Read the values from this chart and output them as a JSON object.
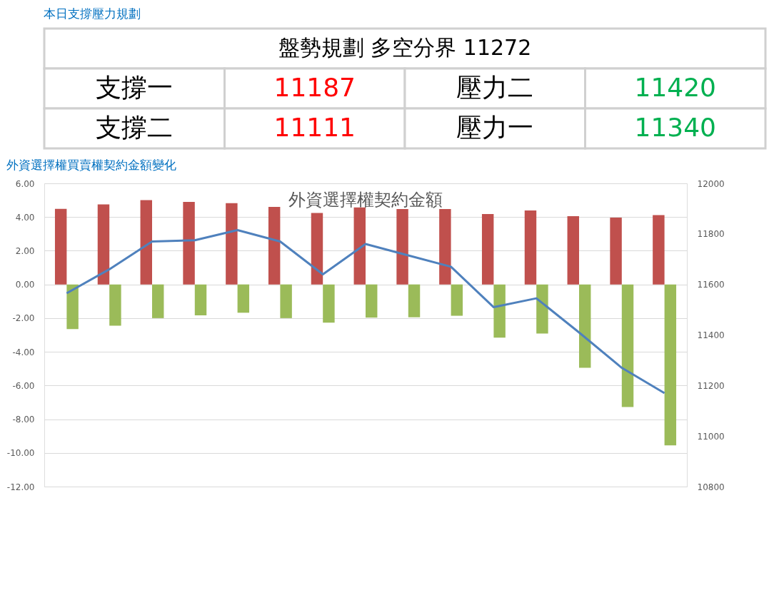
{
  "chart_data": [
    {
      "type": "other",
      "title": "本日支撐壓力規劃",
      "subtitle": "盤勢規劃 多空分界 11272",
      "annotations": [
        "支撐一",
        "11187",
        "壓力二",
        "11420",
        "支撐二",
        "11111",
        "壓力一",
        "11340"
      ],
      "colors": [
        "#000000",
        "#ff0000",
        "#000000",
        "#00b050",
        "#000000",
        "#ff0000",
        "#000000",
        "#00b050"
      ]
    },
    {
      "type": "bar",
      "title": "外資選擇權買賣權契約金額變化",
      "subtitle": "外資選擇權契約金額",
      "categories": [
        null,
        null,
        null,
        null,
        null,
        null,
        null,
        null,
        null,
        null,
        null,
        null,
        null,
        null,
        null
      ],
      "series": [
        {
          "color": "#c0504d",
          "values": [
            4.49,
            4.75,
            5.0,
            4.9,
            4.83,
            4.6,
            4.24,
            4.57,
            4.48,
            4.48,
            4.18,
            4.39,
            4.05,
            3.97,
            4.12
          ]
        },
        {
          "color": "#9bbb59",
          "values": [
            -2.65,
            -2.45,
            -2.0,
            -1.83,
            -1.68,
            -2.0,
            -2.27,
            -1.97,
            -1.95,
            -1.86,
            -3.16,
            -2.92,
            -4.95,
            -7.28,
            -9.55
          ]
        },
        {
          "type": "line",
          "axis": "y2",
          "color": "#4f81bd",
          "values": [
            11565,
            11660,
            11770,
            11775,
            11815,
            11770,
            11640,
            11760,
            11715,
            11670,
            11510,
            11545,
            11410,
            11270,
            11170
          ]
        }
      ],
      "ylim": [
        -12,
        6
      ],
      "yticks": [
        {
          "value": -12,
          "label": "-12.00"
        },
        {
          "value": -10,
          "label": "-10.00"
        },
        {
          "value": -8,
          "label": "-8.00"
        },
        {
          "value": -6,
          "label": "-6.00"
        },
        {
          "value": -4,
          "label": "-4.00"
        },
        {
          "value": -2,
          "label": "-2.00"
        },
        {
          "value": 0,
          "label": "0.00"
        },
        {
          "value": 2,
          "label": "2.00"
        },
        {
          "value": 4,
          "label": "4.00"
        },
        {
          "value": 6,
          "label": "6.00"
        }
      ],
      "y2lim": [
        10800,
        12000
      ],
      "y2ticks": [
        10800,
        11000,
        11200,
        11400,
        11600,
        11800,
        12000
      ],
      "grid": "y"
    }
  ]
}
